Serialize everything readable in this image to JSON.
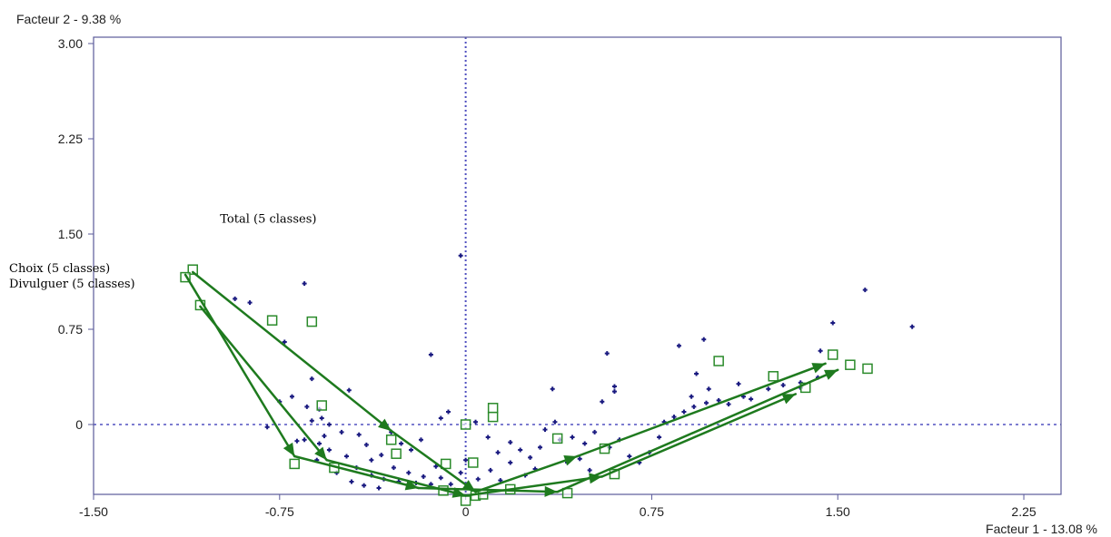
{
  "chart_data": {
    "type": "scatter",
    "title": "",
    "xlabel": "Facteur 1  -  13.08 %",
    "ylabel": "Facteur 2  -  9.38 %",
    "xlim": [
      -1.5,
      2.4
    ],
    "ylim": [
      -0.55,
      3.05
    ],
    "x_ticks": [
      {
        "value": -1.5,
        "label": "-1.50"
      },
      {
        "value": -0.75,
        "label": "-0.75"
      },
      {
        "value": 0,
        "label": "0"
      },
      {
        "value": 0.75,
        "label": "0.75"
      },
      {
        "value": 1.5,
        "label": "1.50"
      },
      {
        "value": 2.25,
        "label": "2.25"
      }
    ],
    "y_ticks": [
      {
        "value": 3.0,
        "label": "3.00"
      },
      {
        "value": 2.25,
        "label": "2.25"
      },
      {
        "value": 1.5,
        "label": "1.50"
      },
      {
        "value": 0.75,
        "label": "0.75"
      },
      {
        "value": 0,
        "label": "0"
      }
    ],
    "grid": false,
    "reference_lines": {
      "x": 0,
      "y": 0,
      "style": "dotted"
    },
    "colors": {
      "frame": "#5a5a9a",
      "reference": "#5050c0",
      "individuals": "#1a1a80",
      "categories": "#2a8a2a",
      "trajectories": "#1e7a1e"
    },
    "individuals": [
      [
        -0.02,
        1.33
      ],
      [
        -0.65,
        1.11
      ],
      [
        1.61,
        1.06
      ],
      [
        1.8,
        0.77
      ],
      [
        1.48,
        0.8
      ],
      [
        -0.93,
        0.99
      ],
      [
        -0.87,
        0.96
      ],
      [
        -0.73,
        0.65
      ],
      [
        -0.14,
        0.55
      ],
      [
        0.57,
        0.56
      ],
      [
        0.96,
        0.67
      ],
      [
        0.86,
        0.62
      ],
      [
        1.43,
        0.58
      ],
      [
        0.6,
        0.3
      ],
      [
        0.93,
        0.4
      ],
      [
        1.1,
        0.32
      ],
      [
        0.98,
        0.28
      ],
      [
        0.91,
        0.22
      ],
      [
        1.15,
        0.2
      ],
      [
        0.35,
        0.28
      ],
      [
        -0.62,
        0.36
      ],
      [
        -0.47,
        0.27
      ],
      [
        -0.7,
        0.22
      ],
      [
        -0.75,
        0.18
      ],
      [
        -0.59,
        0.12
      ],
      [
        -0.62,
        0.03
      ],
      [
        -0.55,
        0.0
      ],
      [
        -0.65,
        -0.12
      ],
      [
        -0.68,
        -0.13
      ],
      [
        -0.59,
        -0.15
      ],
      [
        -0.55,
        -0.2
      ],
      [
        -0.48,
        -0.25
      ],
      [
        -0.43,
        -0.08
      ],
      [
        -0.4,
        -0.16
      ],
      [
        -0.38,
        -0.28
      ],
      [
        -0.44,
        -0.34
      ],
      [
        -0.38,
        -0.4
      ],
      [
        -0.33,
        -0.43
      ],
      [
        -0.29,
        -0.34
      ],
      [
        -0.27,
        -0.45
      ],
      [
        -0.23,
        -0.38
      ],
      [
        -0.2,
        -0.46
      ],
      [
        -0.17,
        -0.41
      ],
      [
        -0.14,
        -0.47
      ],
      [
        -0.1,
        -0.42
      ],
      [
        -0.06,
        -0.47
      ],
      [
        -0.02,
        -0.38
      ],
      [
        0.05,
        -0.43
      ],
      [
        0.1,
        -0.36
      ],
      [
        0.14,
        -0.44
      ],
      [
        0.18,
        -0.3
      ],
      [
        0.24,
        -0.4
      ],
      [
        0.28,
        -0.35
      ],
      [
        0.3,
        -0.18
      ],
      [
        0.32,
        -0.04
      ],
      [
        0.36,
        0.02
      ],
      [
        0.38,
        -0.12
      ],
      [
        0.43,
        -0.1
      ],
      [
        0.48,
        -0.15
      ],
      [
        0.52,
        -0.06
      ],
      [
        0.58,
        -0.18
      ],
      [
        0.62,
        -0.12
      ],
      [
        0.66,
        -0.25
      ],
      [
        0.7,
        -0.3
      ],
      [
        0.74,
        -0.22
      ],
      [
        0.78,
        -0.1
      ],
      [
        0.8,
        0.02
      ],
      [
        0.84,
        0.06
      ],
      [
        0.88,
        0.1
      ],
      [
        0.92,
        0.14
      ],
      [
        0.97,
        0.17
      ],
      [
        1.02,
        0.19
      ],
      [
        1.06,
        0.16
      ],
      [
        1.12,
        0.22
      ],
      [
        1.22,
        0.28
      ],
      [
        1.28,
        0.31
      ],
      [
        1.35,
        0.33
      ],
      [
        1.42,
        0.37
      ],
      [
        1.46,
        0.41
      ],
      [
        -0.07,
        0.1
      ],
      [
        -0.1,
        0.05
      ],
      [
        0.04,
        0.02
      ],
      [
        0.09,
        -0.1
      ],
      [
        0.13,
        -0.22
      ],
      [
        0.18,
        -0.14
      ],
      [
        -0.18,
        -0.12
      ],
      [
        -0.22,
        -0.2
      ],
      [
        -0.26,
        -0.15
      ],
      [
        -0.3,
        -0.06
      ],
      [
        -0.34,
        -0.24
      ],
      [
        -0.5,
        -0.06
      ],
      [
        -0.57,
        -0.09
      ],
      [
        -0.6,
        -0.28
      ],
      [
        -0.52,
        -0.38
      ],
      [
        -0.46,
        -0.45
      ],
      [
        -0.41,
        -0.48
      ],
      [
        -0.35,
        -0.5
      ],
      [
        -0.12,
        -0.33
      ],
      [
        0.0,
        -0.28
      ],
      [
        0.22,
        -0.2
      ],
      [
        0.26,
        -0.26
      ],
      [
        0.41,
        -0.3
      ],
      [
        0.46,
        -0.27
      ],
      [
        0.5,
        -0.36
      ],
      [
        -0.8,
        -0.02
      ],
      [
        -0.64,
        0.14
      ],
      [
        -0.58,
        0.05
      ],
      [
        0.55,
        0.18
      ],
      [
        0.6,
        0.26
      ],
      [
        1.35,
        0.29
      ]
    ],
    "categories": [
      [
        -1.1,
        1.22
      ],
      [
        -1.13,
        1.16
      ],
      [
        -1.07,
        0.94
      ],
      [
        -0.78,
        0.82
      ],
      [
        -0.62,
        0.81
      ],
      [
        -0.58,
        0.15
      ],
      [
        -0.3,
        -0.12
      ],
      [
        -0.28,
        -0.23
      ],
      [
        -0.69,
        -0.31
      ],
      [
        -0.53,
        -0.34
      ],
      [
        -0.08,
        -0.31
      ],
      [
        0.0,
        0.0
      ],
      [
        0.11,
        0.13
      ],
      [
        0.11,
        0.06
      ],
      [
        0.03,
        -0.3
      ],
      [
        0.18,
        -0.51
      ],
      [
        0.37,
        -0.11
      ],
      [
        0.56,
        -0.19
      ],
      [
        0.41,
        -0.54
      ],
      [
        0.6,
        -0.39
      ],
      [
        1.02,
        0.5
      ],
      [
        1.24,
        0.38
      ],
      [
        1.48,
        0.55
      ],
      [
        1.55,
        0.47
      ],
      [
        1.62,
        0.44
      ],
      [
        1.37,
        0.29
      ],
      [
        -0.09,
        -0.52
      ],
      [
        0.04,
        -0.56
      ],
      [
        0.0,
        -0.6
      ],
      [
        0.07,
        -0.55
      ]
    ],
    "series": [
      {
        "name": "Total (5 classes)",
        "points": [
          [
            -1.1,
            1.2
          ],
          [
            -0.3,
            -0.05
          ],
          [
            0.04,
            -0.53
          ],
          [
            0.45,
            -0.25
          ],
          [
            1.45,
            0.48
          ]
        ]
      },
      {
        "name": "Choix (5 classes)",
        "points": [
          [
            -1.13,
            1.18
          ],
          [
            -0.69,
            -0.25
          ],
          [
            -0.19,
            -0.5
          ],
          [
            0.37,
            -0.53
          ],
          [
            1.5,
            0.43
          ]
        ]
      },
      {
        "name": "Divulguer (5 classes)",
        "points": [
          [
            -1.07,
            0.93
          ],
          [
            -0.56,
            -0.28
          ],
          [
            0.0,
            -0.56
          ],
          [
            0.55,
            -0.41
          ],
          [
            1.33,
            0.24
          ]
        ]
      }
    ],
    "annotations": [
      {
        "text": "Total (5 classes)",
        "x": -0.99,
        "y": 1.59
      },
      {
        "text": "Choix (5 classes)",
        "x": -1.9,
        "y": 1.2
      },
      {
        "text": "Divulguer (5 classes)",
        "x": -1.9,
        "y": 1.08
      }
    ]
  }
}
